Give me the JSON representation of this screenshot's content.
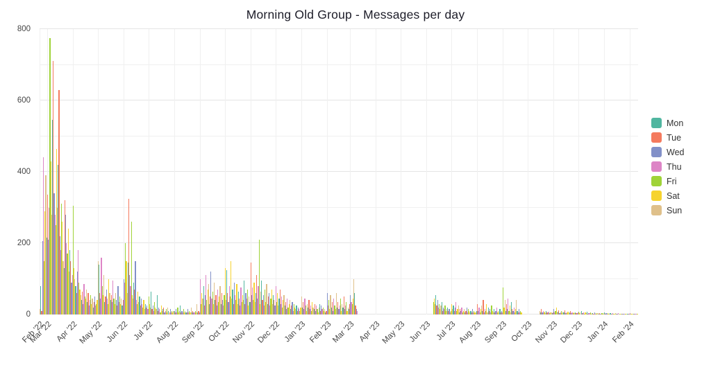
{
  "title": "Morning Old Group - Messages per day",
  "chart_data": {
    "type": "bar",
    "title": "Morning Old Group - Messages per day",
    "xlabel": "",
    "ylabel": "",
    "ylim": [
      0,
      800
    ],
    "yticks": [
      0,
      200,
      400,
      600,
      800
    ],
    "grid": true,
    "legend_position": "right",
    "bar_unit": "messages per day, colored by weekday",
    "start_date": "2022-02-20",
    "series_by_weekday": [
      {
        "name": "Mon",
        "color": "#50b6a0"
      },
      {
        "name": "Tue",
        "color": "#f47a5e"
      },
      {
        "name": "Wed",
        "color": "#8290c8"
      },
      {
        "name": "Thu",
        "color": "#dd85c6"
      },
      {
        "name": "Fri",
        "color": "#9fd338"
      },
      {
        "name": "Sat",
        "color": "#f6d32f"
      },
      {
        "name": "Sun",
        "color": "#dfc08a"
      }
    ],
    "months": [
      {
        "label": "Feb '22",
        "values": [
          15,
          80,
          10,
          205,
          440,
          150,
          290,
          390,
          215
        ]
      },
      {
        "label": "Mar '22",
        "values": [
          335,
          210,
          300,
          775,
          430,
          280,
          545,
          710,
          340,
          280,
          250,
          465,
          300,
          420,
          630,
          220,
          180,
          310,
          260,
          150,
          130,
          320,
          280,
          200,
          170,
          240,
          120,
          180,
          150,
          90,
          110
        ]
      },
      {
        "label": "Apr '22",
        "values": [
          305,
          130,
          100,
          80,
          60,
          120,
          180,
          90,
          70,
          55,
          40,
          65,
          30,
          85,
          50,
          45,
          70,
          35,
          60,
          25,
          40,
          55,
          30,
          45,
          20,
          35,
          50,
          25,
          30,
          40
        ]
      },
      {
        "label": "May '22",
        "values": [
          150,
          140,
          60,
          45,
          160,
          80,
          55,
          110,
          35,
          50,
          70,
          45,
          30,
          100,
          60,
          40,
          55,
          35,
          95,
          45,
          30,
          60,
          40,
          25,
          80,
          35,
          50,
          30,
          45,
          25,
          40
        ]
      },
      {
        "label": "Jun '22",
        "values": [
          100,
          90,
          200,
          150,
          60,
          145,
          325,
          110,
          80,
          260,
          55,
          45,
          90,
          70,
          150,
          40,
          30,
          65,
          35,
          50,
          25,
          45,
          30,
          20,
          40,
          15,
          30,
          20,
          25,
          15
        ]
      },
      {
        "label": "Jul '22",
        "values": [
          50,
          30,
          20,
          65,
          15,
          25,
          10,
          35,
          20,
          15,
          55,
          10,
          20,
          15,
          5,
          25,
          10,
          15,
          20,
          5,
          10,
          15,
          5,
          20,
          10,
          5,
          15,
          5,
          10,
          5,
          10
        ]
      },
      {
        "label": "Aug '22",
        "values": [
          10,
          5,
          15,
          5,
          20,
          5,
          10,
          25,
          5,
          10,
          5,
          15,
          5,
          10,
          5,
          5,
          15,
          5,
          10,
          5,
          20,
          5,
          10,
          5,
          5,
          10,
          5,
          30,
          5,
          10,
          5
        ]
      },
      {
        "label": "Sep '22",
        "values": [
          100,
          30,
          60,
          45,
          80,
          25,
          55,
          110,
          40,
          70,
          85,
          30,
          50,
          120,
          45,
          65,
          30,
          90,
          40,
          55,
          25,
          70,
          35,
          50,
          80,
          30,
          60,
          40,
          25,
          55
        ]
      },
      {
        "label": "Oct '22",
        "values": [
          130,
          40,
          125,
          60,
          35,
          80,
          50,
          150,
          45,
          70,
          30,
          90,
          55,
          40,
          85,
          30,
          65,
          45,
          25,
          75,
          35,
          55,
          40,
          95,
          30,
          60,
          45,
          70,
          25,
          50,
          35
        ]
      },
      {
        "label": "Nov '22",
        "values": [
          145,
          55,
          75,
          40,
          90,
          35,
          60,
          110,
          45,
          80,
          210,
          30,
          65,
          95,
          40,
          55,
          25,
          70,
          35,
          85,
          30,
          50,
          60,
          25,
          45,
          70,
          30,
          55,
          40,
          25
        ]
      },
      {
        "label": "Dec '22",
        "values": [
          80,
          35,
          60,
          25,
          45,
          70,
          30,
          50,
          20,
          40,
          55,
          25,
          35,
          15,
          45,
          20,
          30,
          40,
          15,
          25,
          35,
          10,
          30,
          20,
          15,
          25,
          10,
          20,
          15,
          10,
          20
        ]
      },
      {
        "label": "Jan '23",
        "values": [
          50,
          20,
          35,
          15,
          45,
          25,
          10,
          30,
          20,
          40,
          15,
          25,
          10,
          35,
          20,
          15,
          30,
          10,
          25,
          15,
          5,
          20,
          30,
          10,
          25,
          15,
          20,
          10,
          15,
          5,
          10
        ]
      },
      {
        "label": "Feb '23",
        "values": [
          60,
          25,
          40,
          15,
          55,
          20,
          35,
          10,
          45,
          25,
          15,
          60,
          20,
          35,
          15,
          25,
          45,
          10,
          30,
          20,
          50,
          15,
          25,
          35,
          10,
          20,
          15,
          30
        ]
      },
      {
        "label": "Mar '23",
        "values": [
          55,
          35,
          30,
          45,
          100,
          60,
          25,
          15,
          10,
          0,
          0,
          0,
          0,
          0,
          0,
          0,
          0,
          0,
          0,
          0,
          0,
          0,
          0,
          0,
          0,
          0,
          0,
          0,
          0,
          0,
          0
        ]
      },
      {
        "label": "Apr '23",
        "values": [
          0,
          0,
          0,
          0,
          0,
          0,
          0,
          0,
          0,
          0,
          0,
          0,
          0,
          0,
          0,
          0,
          0,
          0,
          0,
          0,
          0,
          0,
          0,
          0,
          0,
          0,
          0,
          0,
          0,
          0
        ]
      },
      {
        "label": "May '23",
        "values": [
          0,
          0,
          0,
          0,
          0,
          0,
          0,
          0,
          0,
          0,
          0,
          0,
          0,
          0,
          0,
          0,
          0,
          0,
          0,
          0,
          0,
          0,
          0,
          0,
          0,
          0,
          0,
          0,
          0,
          0,
          0
        ]
      },
      {
        "label": "Jun '23",
        "values": [
          0,
          0,
          0,
          0,
          0,
          0,
          0,
          0,
          35,
          45,
          30,
          55,
          25,
          40,
          20,
          30,
          15,
          25,
          35,
          10,
          20,
          15,
          25,
          10,
          15,
          20,
          10,
          15,
          5,
          10
        ]
      },
      {
        "label": "Jul '23",
        "values": [
          30,
          15,
          25,
          10,
          20,
          35,
          10,
          15,
          25,
          5,
          15,
          10,
          20,
          5,
          10,
          15,
          5,
          10,
          20,
          5,
          15,
          10,
          5,
          10,
          5,
          15,
          5,
          10,
          5,
          5,
          10
        ]
      },
      {
        "label": "Aug '23",
        "values": [
          30,
          10,
          20,
          5,
          15,
          25,
          10,
          40,
          5,
          15,
          10,
          30,
          5,
          20,
          10,
          15,
          5,
          25,
          10,
          5,
          15,
          5,
          10,
          20,
          5,
          10,
          5,
          15,
          5,
          10,
          5
        ]
      },
      {
        "label": "Sep '23",
        "values": [
          75,
          20,
          40,
          10,
          30,
          15,
          45,
          10,
          25,
          5,
          35,
          15,
          10,
          20,
          5,
          15,
          40,
          10,
          5,
          15,
          5,
          10,
          5,
          0,
          0,
          0,
          0,
          0,
          0,
          0
        ]
      },
      {
        "label": "Oct '23",
        "values": [
          0,
          0,
          0,
          0,
          0,
          0,
          0,
          0,
          0,
          0,
          0,
          0,
          0,
          0,
          10,
          5,
          15,
          5,
          10,
          5,
          8,
          4,
          10,
          5,
          5,
          8,
          4,
          6,
          5,
          4,
          5
        ]
      },
      {
        "label": "Nov '23",
        "values": [
          15,
          5,
          10,
          20,
          5,
          8,
          12,
          4,
          6,
          10,
          3,
          8,
          5,
          12,
          4,
          6,
          3,
          8,
          4,
          5,
          10,
          3,
          5,
          4,
          6,
          3,
          5,
          4,
          3,
          5
        ]
      },
      {
        "label": "Dec '23",
        "values": [
          8,
          3,
          5,
          10,
          3,
          4,
          6,
          2,
          5,
          3,
          8,
          2,
          4,
          3,
          5,
          2,
          3,
          4,
          2,
          5,
          2,
          3,
          2,
          4,
          2,
          3,
          2,
          2,
          3,
          2,
          3
        ]
      },
      {
        "label": "Jan '24",
        "values": [
          5,
          2,
          3,
          2,
          4,
          2,
          2,
          3,
          1,
          2,
          3,
          1,
          2,
          4,
          1,
          2,
          1,
          3,
          1,
          2,
          1,
          2,
          1,
          1,
          2,
          1,
          2,
          1,
          1,
          2,
          1
        ]
      },
      {
        "label": "Feb '24",
        "values": [
          3,
          1,
          2,
          1,
          2,
          1,
          1,
          2,
          1,
          1
        ]
      }
    ]
  }
}
